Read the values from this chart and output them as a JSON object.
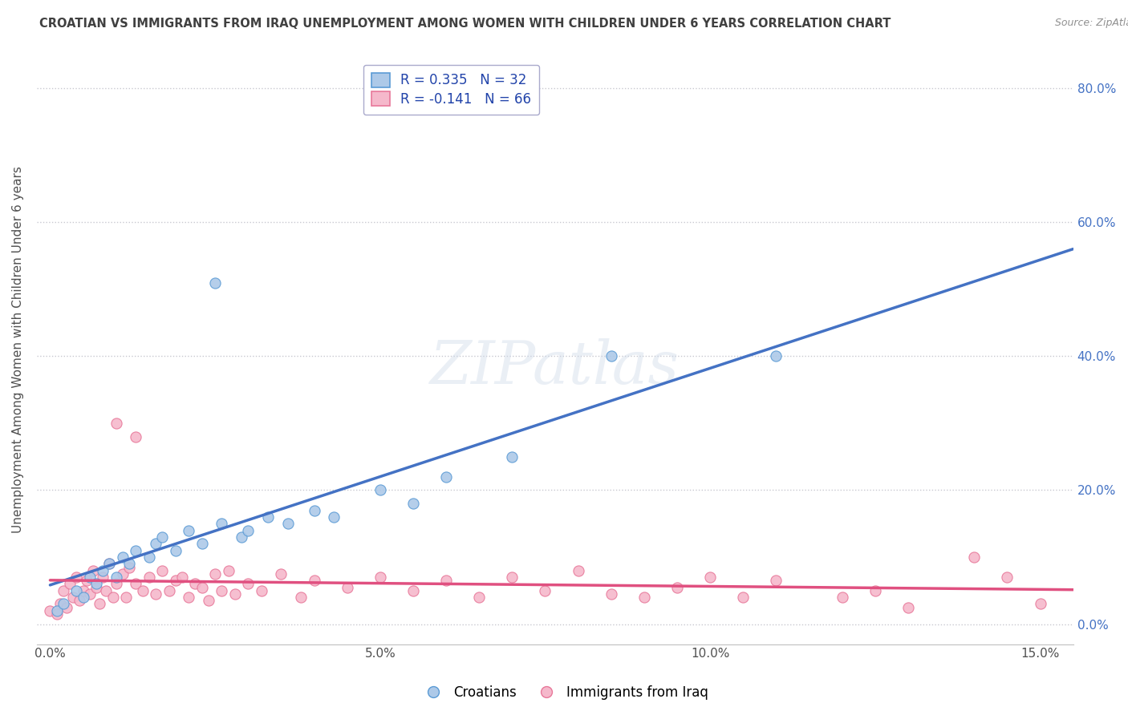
{
  "title": "CROATIAN VS IMMIGRANTS FROM IRAQ UNEMPLOYMENT AMONG WOMEN WITH CHILDREN UNDER 6 YEARS CORRELATION CHART",
  "source": "Source: ZipAtlas.com",
  "ylabel": "Unemployment Among Women with Children Under 6 years",
  "xlabel_ticks": [
    "0.0%",
    "5.0%",
    "10.0%",
    "15.0%"
  ],
  "xlabel_vals": [
    0.0,
    5.0,
    10.0,
    15.0
  ],
  "xlim": [
    -0.2,
    15.5
  ],
  "ylim": [
    -3.0,
    85.0
  ],
  "yticks_right": [
    0.0,
    20.0,
    40.0,
    60.0,
    80.0
  ],
  "ytick_labels_right": [
    "0.0%",
    "20.0%",
    "40.0%",
    "60.0%",
    "80.0%"
  ],
  "croatian_color": "#adc9e8",
  "iraq_color": "#f5b8cb",
  "croatian_edge": "#5b9bd5",
  "iraq_edge": "#e8789a",
  "trendline_croatian": "#4472c4",
  "trendline_iraq": "#e05080",
  "trendline_dashed_color": "#b0c8e8",
  "legend_R_croatian": "R = 0.335",
  "legend_N_croatian": "N = 32",
  "legend_R_iraq": "R = -0.141",
  "legend_N_iraq": "N = 66",
  "background_color": "#ffffff",
  "grid_color": "#c8c8d0",
  "title_color": "#404040",
  "source_color": "#909090",
  "watermark_text": "ZIPatlas",
  "croatians_x": [
    0.1,
    0.2,
    0.4,
    0.5,
    0.6,
    0.7,
    0.8,
    0.9,
    1.0,
    1.1,
    1.2,
    1.3,
    1.5,
    1.6,
    1.7,
    1.9,
    2.1,
    2.3,
    2.6,
    2.9,
    3.0,
    3.3,
    3.6,
    4.0,
    4.3,
    5.0,
    5.5,
    6.0,
    7.0,
    8.5,
    2.5,
    11.0
  ],
  "croatians_y": [
    2.0,
    3.0,
    5.0,
    4.0,
    7.0,
    6.0,
    8.0,
    9.0,
    7.0,
    10.0,
    9.0,
    11.0,
    10.0,
    12.0,
    13.0,
    11.0,
    14.0,
    12.0,
    15.0,
    13.0,
    14.0,
    16.0,
    15.0,
    17.0,
    16.0,
    20.0,
    18.0,
    22.0,
    25.0,
    40.0,
    51.0,
    40.0
  ],
  "iraq_x": [
    0.0,
    0.1,
    0.15,
    0.2,
    0.25,
    0.3,
    0.35,
    0.4,
    0.45,
    0.5,
    0.55,
    0.6,
    0.65,
    0.7,
    0.75,
    0.8,
    0.85,
    0.9,
    0.95,
    1.0,
    1.1,
    1.15,
    1.2,
    1.3,
    1.4,
    1.5,
    1.6,
    1.7,
    1.8,
    1.9,
    2.0,
    2.1,
    2.2,
    2.3,
    2.4,
    2.5,
    2.6,
    2.7,
    2.8,
    3.0,
    3.2,
    3.5,
    3.8,
    4.0,
    4.5,
    5.0,
    5.5,
    6.0,
    6.5,
    7.0,
    7.5,
    8.0,
    8.5,
    9.0,
    9.5,
    10.0,
    10.5,
    11.0,
    12.0,
    12.5,
    13.0,
    14.0,
    14.5,
    15.0,
    1.0,
    1.3
  ],
  "iraq_y": [
    2.0,
    1.5,
    3.0,
    5.0,
    2.5,
    6.0,
    4.0,
    7.0,
    3.5,
    5.0,
    6.5,
    4.5,
    8.0,
    5.5,
    3.0,
    7.0,
    5.0,
    9.0,
    4.0,
    6.0,
    7.5,
    4.0,
    8.5,
    6.0,
    5.0,
    7.0,
    4.5,
    8.0,
    5.0,
    6.5,
    7.0,
    4.0,
    6.0,
    5.5,
    3.5,
    7.5,
    5.0,
    8.0,
    4.5,
    6.0,
    5.0,
    7.5,
    4.0,
    6.5,
    5.5,
    7.0,
    5.0,
    6.5,
    4.0,
    7.0,
    5.0,
    8.0,
    4.5,
    4.0,
    5.5,
    7.0,
    4.0,
    6.5,
    4.0,
    5.0,
    2.5,
    10.0,
    7.0,
    3.0,
    30.0,
    28.0
  ]
}
